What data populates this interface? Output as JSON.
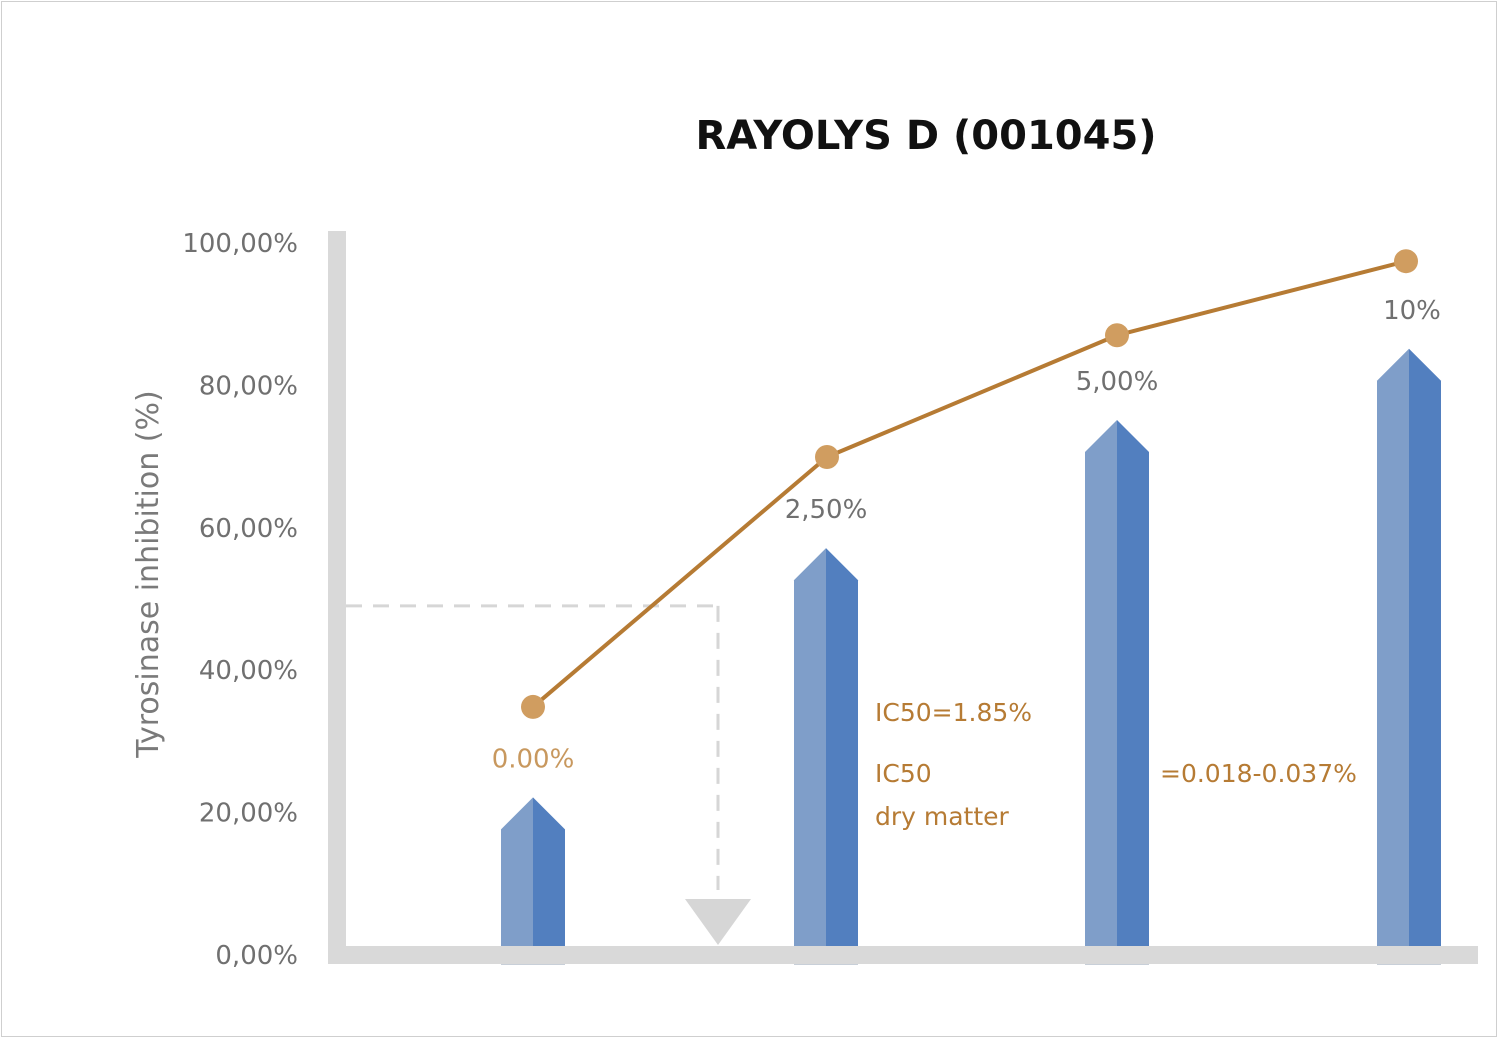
{
  "chart_data": {
    "type": "bar",
    "title": "RAYOLYS D (001045)",
    "ylabel": "Tyrosinase inhibition (%)",
    "xlabel": "",
    "ylim": [
      0,
      100
    ],
    "y_ticks": [
      "0,00%",
      "20,00%",
      "40,00%",
      "60,00%",
      "80,00%",
      "100,00%"
    ],
    "grid": false,
    "categories": [
      "0.00%",
      "2,50%",
      "5,00%",
      "10%"
    ],
    "series": [
      {
        "type": "bar",
        "values": [
          22,
          57,
          75,
          85
        ]
      },
      {
        "type": "line",
        "values": [
          34.7,
          69.8,
          86.9,
          97.3
        ]
      }
    ],
    "ic50_guide": {
      "y": 48.9
    },
    "annotations": [
      "IC50=1.85%",
      "IC50",
      "dry matter",
      "=0.018-0.037%"
    ],
    "colors": {
      "bar_light": "#7f9ec9",
      "bar_dark": "#527fbf",
      "line": "#b67b34",
      "marker": "#d09d60",
      "axis": "#d9d9d9",
      "first_label": "#c8985e",
      "guide": "#d6d6d6"
    }
  }
}
